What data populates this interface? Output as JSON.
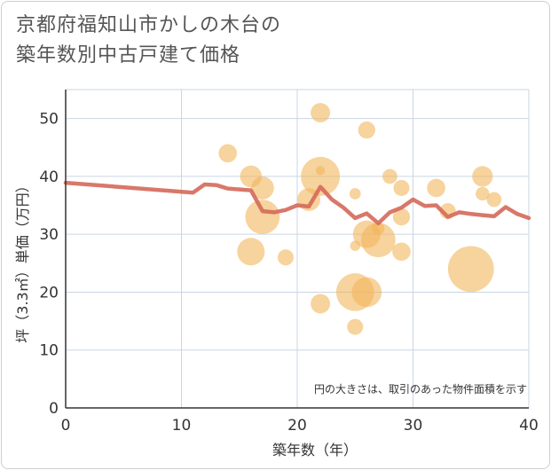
{
  "title": {
    "line1": "京都府福知山市かしの木台の",
    "line2": "築年数別中古戸建て価格"
  },
  "chart_data": {
    "type": "scatter",
    "xlabel": "築年数（年）",
    "ylabel": "坪（3.3㎡）単価（万円）",
    "xlim": [
      0,
      40
    ],
    "ylim": [
      0,
      55
    ],
    "xticks": [
      0,
      10,
      20,
      30,
      40
    ],
    "yticks": [
      0,
      10,
      20,
      30,
      40,
      50
    ],
    "grid": true,
    "note": "円の大きさは、取引のあった物件面積を示す",
    "colors": {
      "bubble": "#f2b65b",
      "line": "#d4695a",
      "grid": "#c9d6e3"
    },
    "points": [
      {
        "x": 14,
        "y": 44,
        "size": 1.2
      },
      {
        "x": 16,
        "y": 40,
        "size": 1.5
      },
      {
        "x": 16,
        "y": 27,
        "size": 2.0
      },
      {
        "x": 17,
        "y": 38,
        "size": 1.6
      },
      {
        "x": 17,
        "y": 33,
        "size": 2.6
      },
      {
        "x": 19,
        "y": 26,
        "size": 1.0
      },
      {
        "x": 21,
        "y": 36,
        "size": 1.6
      },
      {
        "x": 22,
        "y": 51,
        "size": 1.3
      },
      {
        "x": 22,
        "y": 40,
        "size": 3.0
      },
      {
        "x": 22,
        "y": 18,
        "size": 1.3
      },
      {
        "x": 22,
        "y": 41,
        "size": 0.4
      },
      {
        "x": 25,
        "y": 37,
        "size": 0.6
      },
      {
        "x": 25,
        "y": 28,
        "size": 0.5
      },
      {
        "x": 25,
        "y": 20,
        "size": 2.9
      },
      {
        "x": 25,
        "y": 14,
        "size": 1.0
      },
      {
        "x": 26,
        "y": 48,
        "size": 1.1
      },
      {
        "x": 26,
        "y": 30,
        "size": 2.0
      },
      {
        "x": 26,
        "y": 20,
        "size": 2.2
      },
      {
        "x": 27,
        "y": 29,
        "size": 2.6
      },
      {
        "x": 27,
        "y": 31,
        "size": 0.7
      },
      {
        "x": 28,
        "y": 40,
        "size": 0.9
      },
      {
        "x": 29,
        "y": 38,
        "size": 1.0
      },
      {
        "x": 29,
        "y": 33,
        "size": 1.1
      },
      {
        "x": 29,
        "y": 27,
        "size": 1.2
      },
      {
        "x": 32,
        "y": 38,
        "size": 1.2
      },
      {
        "x": 33,
        "y": 34,
        "size": 1.0
      },
      {
        "x": 35,
        "y": 24,
        "size": 3.6
      },
      {
        "x": 36,
        "y": 40,
        "size": 1.4
      },
      {
        "x": 36,
        "y": 37,
        "size": 0.8
      },
      {
        "x": 37,
        "y": 36,
        "size": 0.9
      }
    ],
    "line": [
      {
        "x": 0,
        "y": 38.9
      },
      {
        "x": 11,
        "y": 37.2
      },
      {
        "x": 12,
        "y": 38.6
      },
      {
        "x": 13,
        "y": 38.5
      },
      {
        "x": 14,
        "y": 37.9
      },
      {
        "x": 16,
        "y": 37.6
      },
      {
        "x": 17,
        "y": 34.0
      },
      {
        "x": 18,
        "y": 33.8
      },
      {
        "x": 19,
        "y": 34.2
      },
      {
        "x": 20,
        "y": 35.0
      },
      {
        "x": 21,
        "y": 34.8
      },
      {
        "x": 22,
        "y": 38.2
      },
      {
        "x": 23,
        "y": 36.0
      },
      {
        "x": 24,
        "y": 34.6
      },
      {
        "x": 25,
        "y": 32.8
      },
      {
        "x": 26,
        "y": 33.6
      },
      {
        "x": 27,
        "y": 31.9
      },
      {
        "x": 28,
        "y": 33.8
      },
      {
        "x": 29,
        "y": 34.6
      },
      {
        "x": 30,
        "y": 36.0
      },
      {
        "x": 31,
        "y": 34.9
      },
      {
        "x": 32,
        "y": 35.0
      },
      {
        "x": 33,
        "y": 33.0
      },
      {
        "x": 34,
        "y": 33.8
      },
      {
        "x": 35,
        "y": 33.5
      },
      {
        "x": 36,
        "y": 33.3
      },
      {
        "x": 37,
        "y": 33.1
      },
      {
        "x": 38,
        "y": 34.7
      },
      {
        "x": 39,
        "y": 33.5
      },
      {
        "x": 40,
        "y": 32.8
      }
    ]
  }
}
